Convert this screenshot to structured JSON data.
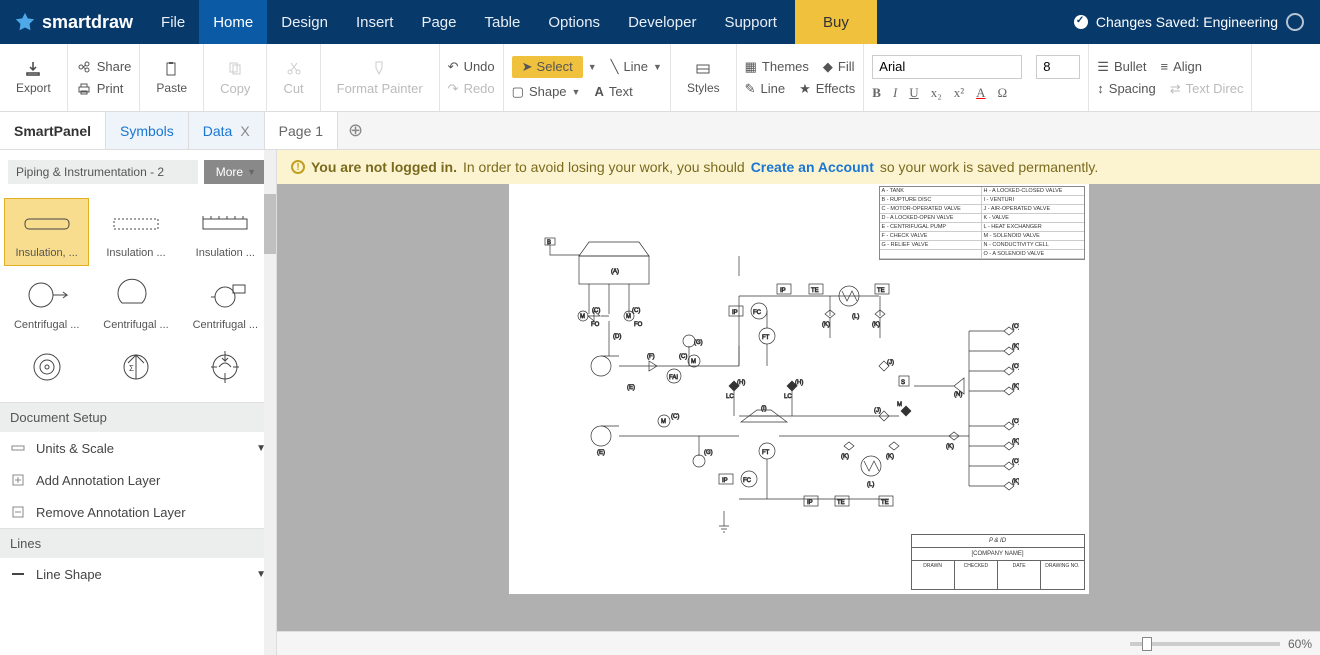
{
  "app": {
    "name": "smartdraw"
  },
  "menu": {
    "items": [
      "File",
      "Home",
      "Design",
      "Insert",
      "Page",
      "Table",
      "Options",
      "Developer",
      "Support"
    ],
    "active": 1,
    "buy": "Buy"
  },
  "status": {
    "text": "Changes Saved: Engineering"
  },
  "ribbon": {
    "export": "Export",
    "share": "Share",
    "print": "Print",
    "paste": "Paste",
    "copy": "Copy",
    "cut": "Cut",
    "format_painter": "Format Painter",
    "undo": "Undo",
    "redo": "Redo",
    "select": "Select",
    "shape": "Shape",
    "line": "Line",
    "text": "Text",
    "styles": "Styles",
    "themes": "Themes",
    "fill": "Fill",
    "line2": "Line",
    "effects": "Effects",
    "font": "Arial",
    "size": "8",
    "bullet": "Bullet",
    "align": "Align",
    "spacing": "Spacing",
    "text_dir": "Text Direc"
  },
  "tabs": {
    "smartpanel": "SmartPanel",
    "symbols": "Symbols",
    "data": "Data",
    "page": "Page 1"
  },
  "sidebar": {
    "library": "Piping & Instrumentation - 2",
    "more": "More",
    "symbols": [
      {
        "label": "Insulation, ...",
        "selected": true,
        "type": "insul1"
      },
      {
        "label": "Insulation ...",
        "type": "insul2"
      },
      {
        "label": "Insulation ...",
        "type": "insul3"
      },
      {
        "label": "Centrifugal ...",
        "type": "centri1"
      },
      {
        "label": "Centrifugal ...",
        "type": "centri2"
      },
      {
        "label": "Centrifugal ...",
        "type": "centri3"
      },
      {
        "label": "",
        "type": "pump1"
      },
      {
        "label": "",
        "type": "pump2"
      },
      {
        "label": "",
        "type": "pump3"
      }
    ],
    "doc_setup": "Document Setup",
    "units": "Units & Scale",
    "add_layer": "Add Annotation Layer",
    "remove_layer": "Remove Annotation Layer",
    "lines": "Lines",
    "line_shape": "Line Shape"
  },
  "warning": {
    "bold": "You are not logged in.",
    "mid": "In order to avoid losing your work, you should",
    "link": "Create an Account",
    "end": "so your work is saved permanently."
  },
  "legend": [
    [
      "A - TANK",
      "H - A LOCKED-CLOSED VALVE"
    ],
    [
      "B - RUPTURE DISC",
      "I - VENTURI"
    ],
    [
      "C - MOTOR-OPERATED VALVE",
      "J - AIR-OPERATED VALVE"
    ],
    [
      "D - A LOCKED-OPEN VALVE",
      "K - VALVE"
    ],
    [
      "E - CENTRIFUGAL PUMP",
      "L - HEAT EXCHANGER"
    ],
    [
      "F - CHECK VALVE",
      "M - SOLENOID VALVE"
    ],
    [
      "G - RELIEF VALVE",
      "N - CONDUCTIVITY CELL"
    ],
    [
      "",
      "O - A SOLENOID VALVE"
    ]
  ],
  "titleblock": {
    "title": "P & ID",
    "company": "[COMPANY NAME]",
    "cols": [
      "DRAWN",
      "CHECKED",
      "DATE",
      "DRAWING NO."
    ]
  },
  "zoom": "60%",
  "colors": {
    "topbar": "#07396b",
    "active_menu": "#0a5aa5",
    "buy": "#f0c13c",
    "warning_bg": "#fcf4d1",
    "link": "#1976d2",
    "canvas_bg": "#b0b0b0"
  }
}
